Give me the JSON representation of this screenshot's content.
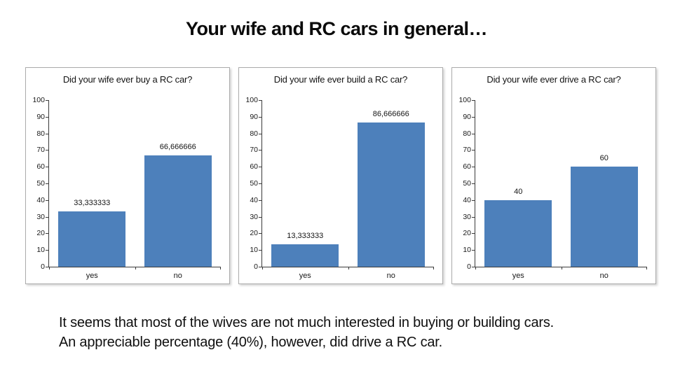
{
  "slide": {
    "title": "Your wife and RC cars in general…",
    "footer_lines": [
      "It seems that most of the wives are not much interested in buying or building cars.",
      "An appreciable percentage (40%), however, did drive a RC car."
    ]
  },
  "colors": {
    "bar": "#4d80bb",
    "axis": "#3a3a3a",
    "panel_border": "#ababab",
    "text": "#141414"
  },
  "chart_data": [
    {
      "type": "bar",
      "title": "Did your wife ever buy a RC car?",
      "categories": [
        "yes",
        "no"
      ],
      "values": [
        33.333333,
        66.666666
      ],
      "value_labels": [
        "33,333333",
        "66,666666"
      ],
      "xlabel": "",
      "ylabel": "",
      "ylim": [
        0,
        100
      ],
      "yticks": [
        0,
        10,
        20,
        30,
        40,
        50,
        60,
        70,
        80,
        90,
        100
      ],
      "grid": false,
      "legend": "none"
    },
    {
      "type": "bar",
      "title": "Did your wife ever build a RC car?",
      "categories": [
        "yes",
        "no"
      ],
      "values": [
        13.333333,
        86.666666
      ],
      "value_labels": [
        "13,333333",
        "86,666666"
      ],
      "xlabel": "",
      "ylabel": "",
      "ylim": [
        0,
        100
      ],
      "yticks": [
        0,
        10,
        20,
        30,
        40,
        50,
        60,
        70,
        80,
        90,
        100
      ],
      "grid": false,
      "legend": "none"
    },
    {
      "type": "bar",
      "title": "Did your wife ever drive a RC car?",
      "categories": [
        "yes",
        "no"
      ],
      "values": [
        40,
        60
      ],
      "value_labels": [
        "40",
        "60"
      ],
      "xlabel": "",
      "ylabel": "",
      "ylim": [
        0,
        100
      ],
      "yticks": [
        0,
        10,
        20,
        30,
        40,
        50,
        60,
        70,
        80,
        90,
        100
      ],
      "grid": false,
      "legend": "none"
    }
  ]
}
